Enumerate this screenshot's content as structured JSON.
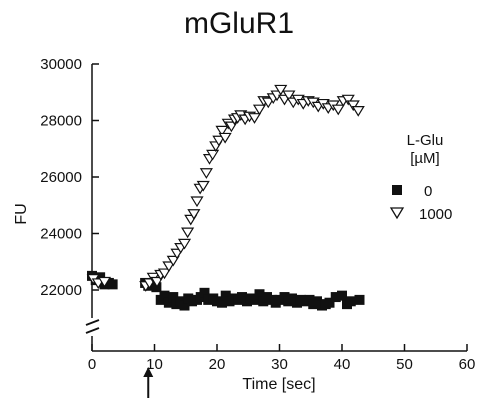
{
  "chart_data": {
    "type": "scatter",
    "title": "mGluR1",
    "xlabel": "Time [sec]",
    "ylabel": "FU",
    "xlim": [
      0,
      60
    ],
    "ylim": [
      21000,
      30000
    ],
    "x_ticks": [
      0,
      10,
      20,
      30,
      40,
      50,
      60
    ],
    "y_ticks": [
      22000,
      24000,
      26000,
      28000,
      30000
    ],
    "y_axis_break": true,
    "stimulus_arrow_x": 9,
    "legend_title": [
      "L-Glu",
      "[µM]"
    ],
    "legend_position": "right",
    "series": [
      {
        "name": "0",
        "marker": "filled-square",
        "color": "#111111",
        "points": [
          [
            0,
            22500
          ],
          [
            0.6,
            22350
          ],
          [
            1.3,
            22450
          ],
          [
            2.0,
            22200
          ],
          [
            2.7,
            22250
          ],
          [
            3.3,
            22200
          ],
          [
            8.5,
            22250
          ],
          [
            9.0,
            22150
          ],
          [
            9.6,
            22200
          ],
          [
            10.3,
            22100
          ],
          [
            11.0,
            21650
          ],
          [
            11.6,
            21800
          ],
          [
            12.3,
            21550
          ],
          [
            13.0,
            21750
          ],
          [
            13.5,
            21500
          ],
          [
            14.2,
            21600
          ],
          [
            14.8,
            21450
          ],
          [
            15.4,
            21700
          ],
          [
            16.0,
            21600
          ],
          [
            16.8,
            21650
          ],
          [
            17.4,
            21750
          ],
          [
            18.0,
            21900
          ],
          [
            18.6,
            21650
          ],
          [
            19.4,
            21700
          ],
          [
            20.0,
            21600
          ],
          [
            20.8,
            21550
          ],
          [
            21.4,
            21800
          ],
          [
            22.0,
            21600
          ],
          [
            22.8,
            21700
          ],
          [
            23.4,
            21650
          ],
          [
            24.0,
            21750
          ],
          [
            24.8,
            21600
          ],
          [
            25.4,
            21700
          ],
          [
            26.0,
            21650
          ],
          [
            26.8,
            21850
          ],
          [
            27.4,
            21600
          ],
          [
            28.0,
            21750
          ],
          [
            28.8,
            21650
          ],
          [
            29.4,
            21550
          ],
          [
            30.0,
            21650
          ],
          [
            30.8,
            21750
          ],
          [
            31.4,
            21600
          ],
          [
            32.0,
            21700
          ],
          [
            32.8,
            21550
          ],
          [
            33.4,
            21650
          ],
          [
            34.0,
            21600
          ],
          [
            34.8,
            21650
          ],
          [
            35.4,
            21500
          ],
          [
            36.0,
            21600
          ],
          [
            36.8,
            21450
          ],
          [
            37.4,
            21500
          ],
          [
            38.0,
            21550
          ],
          [
            39.0,
            21750
          ],
          [
            40.0,
            21800
          ],
          [
            40.8,
            21500
          ],
          [
            41.4,
            21600
          ],
          [
            42.8,
            21650
          ]
        ]
      },
      {
        "name": "1000",
        "marker": "open-triangle-down",
        "color": "#111111",
        "points": [
          [
            0.2,
            22400
          ],
          [
            1.0,
            22250
          ],
          [
            2.0,
            22300
          ],
          [
            8.6,
            22150
          ],
          [
            9.2,
            22250
          ],
          [
            9.8,
            22450
          ],
          [
            10.4,
            22300
          ],
          [
            11.0,
            22550
          ],
          [
            11.6,
            22600
          ],
          [
            12.3,
            22850
          ],
          [
            13.0,
            23050
          ],
          [
            13.6,
            23300
          ],
          [
            14.2,
            23500
          ],
          [
            14.8,
            23650
          ],
          [
            15.3,
            24050
          ],
          [
            15.8,
            24500
          ],
          [
            16.3,
            24700
          ],
          [
            16.8,
            25150
          ],
          [
            17.3,
            25600
          ],
          [
            17.8,
            25700
          ],
          [
            18.3,
            26150
          ],
          [
            18.8,
            26650
          ],
          [
            19.3,
            26800
          ],
          [
            19.8,
            27100
          ],
          [
            20.3,
            27300
          ],
          [
            20.8,
            27650
          ],
          [
            21.3,
            27400
          ],
          [
            21.8,
            27900
          ],
          [
            22.3,
            27800
          ],
          [
            22.8,
            28050
          ],
          [
            23.3,
            28100
          ],
          [
            23.8,
            28200
          ],
          [
            24.5,
            28050
          ],
          [
            25.2,
            28150
          ],
          [
            26.0,
            28100
          ],
          [
            26.8,
            28400
          ],
          [
            27.5,
            28700
          ],
          [
            28.2,
            28650
          ],
          [
            29.0,
            28800
          ],
          [
            29.6,
            28900
          ],
          [
            30.2,
            29100
          ],
          [
            30.8,
            28750
          ],
          [
            31.5,
            28900
          ],
          [
            32.2,
            28650
          ],
          [
            33.0,
            28750
          ],
          [
            33.8,
            28600
          ],
          [
            34.6,
            28700
          ],
          [
            35.4,
            28650
          ],
          [
            36.2,
            28500
          ],
          [
            37.0,
            28600
          ],
          [
            37.8,
            28450
          ],
          [
            38.6,
            28550
          ],
          [
            39.4,
            28400
          ],
          [
            40.2,
            28700
          ],
          [
            41.0,
            28750
          ],
          [
            41.8,
            28550
          ],
          [
            42.6,
            28350
          ]
        ]
      }
    ]
  }
}
